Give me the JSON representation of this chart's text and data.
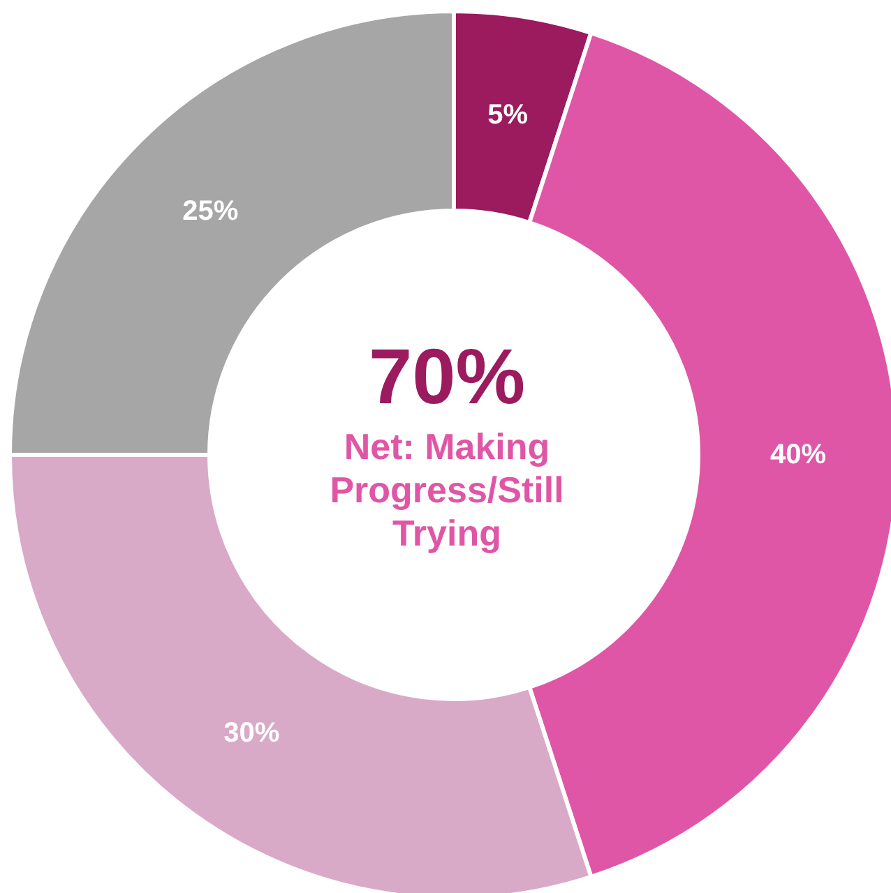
{
  "chart_data": {
    "type": "donut",
    "categories": [
      null,
      null,
      null,
      null
    ],
    "values": [
      5,
      40,
      30,
      25
    ],
    "colors": [
      "#9c1a5e",
      "#e056a6",
      "#d9a9c8",
      "#a6a6a6"
    ],
    "value_labels": [
      "5%",
      "40%",
      "30%",
      "25%"
    ],
    "legend": false,
    "annotations": [
      "70%",
      "Net: Making Progress/Still Trying"
    ]
  }
}
